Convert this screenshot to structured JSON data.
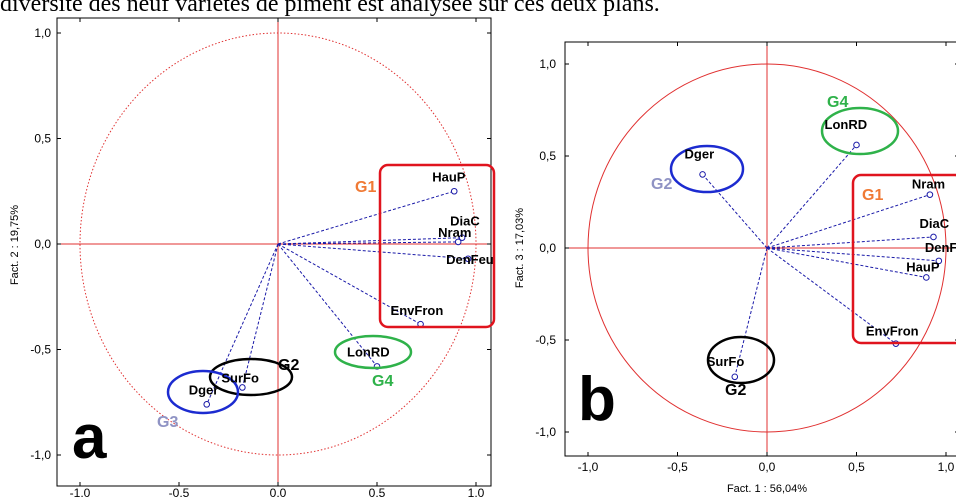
{
  "caption": "diversité des neuf variétés de piment est analysée sur ces deux plans.",
  "colors": {
    "circle": "#e03030",
    "axis": "#e03030",
    "vector": "#1a1aa8",
    "box": "#e0141e",
    "G1": "#f07a35",
    "G2": "#8f93c4",
    "G3": "#8f93c4",
    "G4": "#2fb24a"
  },
  "chart_data": [
    {
      "type": "scatter",
      "panel_label": "a",
      "xlabel": "",
      "ylabel": "Fact. 2 : 19,75%",
      "xlim": [
        -1.0,
        1.0
      ],
      "ylim": [
        -1.0,
        1.0
      ],
      "xticks": [
        "-1,0",
        "-0,5",
        "0,0",
        "0,5",
        "1,0"
      ],
      "yticks": [
        "1,0",
        "0,5",
        "0,0",
        "-0,5",
        "-1,0"
      ],
      "points": [
        {
          "label": "HauP",
          "x": 0.89,
          "y": 0.25
        },
        {
          "label": "DiaC",
          "x": 0.93,
          "y": 0.03
        },
        {
          "label": "Nram",
          "x": 0.91,
          "y": 0.01
        },
        {
          "label": "DenFeu",
          "x": 0.96,
          "y": -0.07
        },
        {
          "label": "EnvFron",
          "x": 0.72,
          "y": -0.38
        },
        {
          "label": "LonRD",
          "x": 0.5,
          "y": -0.58
        },
        {
          "label": "SurFo",
          "x": -0.18,
          "y": -0.68
        },
        {
          "label": "Dger",
          "x": -0.36,
          "y": -0.76
        }
      ],
      "groups": [
        {
          "name": "G1",
          "shape": "box"
        },
        {
          "name": "G2",
          "shape": "ellipse"
        },
        {
          "name": "G3",
          "shape": "ellipse"
        },
        {
          "name": "G4",
          "shape": "ellipse"
        }
      ]
    },
    {
      "type": "scatter",
      "panel_label": "b",
      "xlabel": "Fact. 1 : 56,04%",
      "ylabel": "Fact. 3 : 17,03%",
      "xlim": [
        -1.0,
        1.0
      ],
      "ylim": [
        -1.0,
        1.0
      ],
      "xticks": [
        "-1,0",
        "-0,5",
        "0,0",
        "0,5",
        "1,0"
      ],
      "yticks": [
        "1,0",
        "0,5",
        "0,0",
        "-0,5",
        "-1,0"
      ],
      "points": [
        {
          "label": "LonRD",
          "x": 0.5,
          "y": 0.56
        },
        {
          "label": "Dger",
          "x": -0.36,
          "y": 0.4
        },
        {
          "label": "Nram",
          "x": 0.91,
          "y": 0.29
        },
        {
          "label": "DiaC",
          "x": 0.93,
          "y": 0.06
        },
        {
          "label": "DenFeu",
          "x": 0.96,
          "y": -0.07
        },
        {
          "label": "HauP",
          "x": 0.89,
          "y": -0.16
        },
        {
          "label": "EnvFron",
          "x": 0.72,
          "y": -0.52
        },
        {
          "label": "SurFo",
          "x": -0.18,
          "y": -0.7
        }
      ],
      "groups": [
        {
          "name": "G1",
          "shape": "box"
        },
        {
          "name": "G2",
          "shape": "ellipse"
        },
        {
          "name": "G2",
          "shape": "ellipse"
        },
        {
          "name": "G4",
          "shape": "ellipse"
        }
      ]
    }
  ]
}
